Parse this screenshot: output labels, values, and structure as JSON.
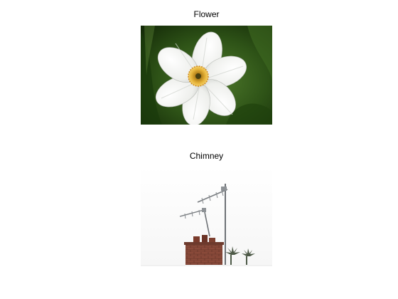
{
  "figure": {
    "panels": [
      {
        "title": "Flower"
      },
      {
        "title": "Chimney"
      }
    ]
  },
  "colors": {
    "background": "#ffffff",
    "foliage_dark": "#1c3a0e",
    "foliage_light": "#4f7a2c",
    "petal": "#f4f4f1",
    "petal_shadow": "#c9ccc8",
    "corona": "#e7b43a",
    "corona_center": "#6b5a12",
    "sky": "#ffffff",
    "brick": "#8a4a3a",
    "brick_dark": "#5e3026",
    "mast": "#707478"
  }
}
